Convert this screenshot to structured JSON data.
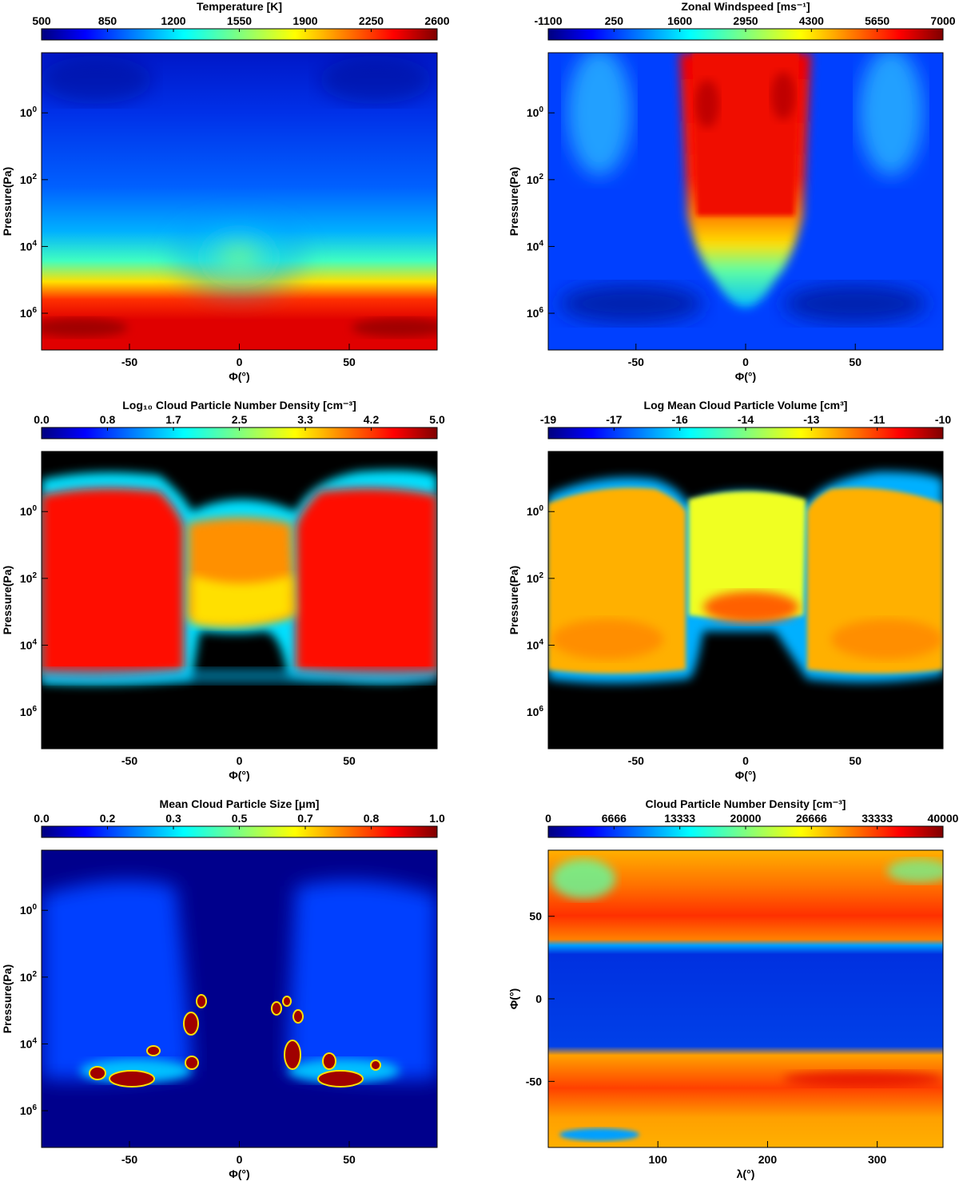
{
  "colors": {
    "jet": [
      "#00007f",
      "#0000ff",
      "#007fff",
      "#00ffff",
      "#7fff7f",
      "#ffff00",
      "#ff7f00",
      "#ff0000",
      "#7f0000"
    ],
    "axis": "#000000",
    "background": "#ffffff",
    "cloud_free": "#000000"
  },
  "chart_data": [
    {
      "id": "temperature",
      "type": "heatmap",
      "title": "Temperature [K]",
      "colorbar_ticks": [
        "500",
        "850",
        "1200",
        "1550",
        "1900",
        "2250",
        "2600"
      ],
      "xlabel": "Φ(°)",
      "ylabel": "Pressure(Pa)",
      "xlim": [
        -90,
        90
      ],
      "x_ticks": [
        "-50",
        "0",
        "50"
      ],
      "y_ticks": [
        "10^0",
        "10^2",
        "10^4",
        "10^6"
      ],
      "ylim": [
        "10^-1.8",
        "10^7.1"
      ],
      "y_scale": "log, inverted",
      "description_values": {
        "upper_atmosphere_K": 650,
        "equatorial_10^4Pa_K": 1650,
        "deep_10^6Pa_K": 2400,
        "deepest_max_K": 2600
      }
    },
    {
      "id": "zonal_wind",
      "type": "heatmap",
      "title": "Zonal Windspeed [ms⁻¹]",
      "colorbar_ticks": [
        "-1100",
        "250",
        "1600",
        "2950",
        "4300",
        "5650",
        "7000"
      ],
      "xlabel": "Φ(°)",
      "ylabel": "Pressure(Pa)",
      "xlim": [
        -90,
        90
      ],
      "x_ticks": [
        "-50",
        "0",
        "50"
      ],
      "y_ticks": [
        "10^0",
        "10^2",
        "10^4",
        "10^6"
      ],
      "y_scale": "log, inverted",
      "description_values": {
        "equatorial_jet_max_ms": 6500,
        "jet_half_width_deg": 25,
        "jet_base_pressure_Pa": "10^6",
        "high_latitude_ms": 500
      }
    },
    {
      "id": "log_number_density",
      "type": "heatmap",
      "title": "Log₁₀ Cloud Particle Number Density [cm⁻³]",
      "colorbar_ticks": [
        "0.0",
        "0.8",
        "1.7",
        "2.5",
        "3.3",
        "4.2",
        "5.0"
      ],
      "xlabel": "Φ(°)",
      "ylabel": "Pressure(Pa)",
      "xlim": [
        -90,
        90
      ],
      "x_ticks": [
        "-50",
        "0",
        "50"
      ],
      "y_ticks": [
        "10^0",
        "10^2",
        "10^4",
        "10^6"
      ],
      "y_scale": "log, inverted"
    },
    {
      "id": "log_mean_volume",
      "type": "heatmap",
      "title": "Log Mean Cloud Particle Volume [cm³]",
      "colorbar_ticks": [
        "-19",
        "-17",
        "-16",
        "-14",
        "-13",
        "-11",
        "-10"
      ],
      "xlabel": "Φ(°)",
      "ylabel": "Pressure(Pa)",
      "xlim": [
        -90,
        90
      ],
      "x_ticks": [
        "-50",
        "0",
        "50"
      ],
      "y_ticks": [
        "10^0",
        "10^2",
        "10^4",
        "10^6"
      ],
      "y_scale": "log, inverted"
    },
    {
      "id": "mean_size",
      "type": "heatmap",
      "title": "Mean Cloud Particle Size [μm]",
      "colorbar_ticks": [
        "0.0",
        "0.2",
        "0.3",
        "0.5",
        "0.7",
        "0.8",
        "1.0"
      ],
      "xlabel": "Φ(°)",
      "ylabel": "Pressure(Pa)",
      "xlim": [
        -90,
        90
      ],
      "x_ticks": [
        "-50",
        "0",
        "50"
      ],
      "y_ticks": [
        "10^0",
        "10^2",
        "10^4",
        "10^6"
      ],
      "y_scale": "log, inverted"
    },
    {
      "id": "number_density_map",
      "type": "heatmap",
      "title": "Cloud Particle Number Density [cm⁻³]",
      "colorbar_ticks": [
        "0",
        "6666",
        "13333",
        "20000",
        "26666",
        "33333",
        "40000"
      ],
      "xlabel": "λ(°)",
      "ylabel": "Φ(°)",
      "xlim": [
        0,
        360
      ],
      "ylim": [
        -90,
        90
      ],
      "x_ticks": [
        "100",
        "200",
        "300"
      ],
      "y_ticks": [
        "50",
        "0",
        "-50"
      ]
    }
  ]
}
